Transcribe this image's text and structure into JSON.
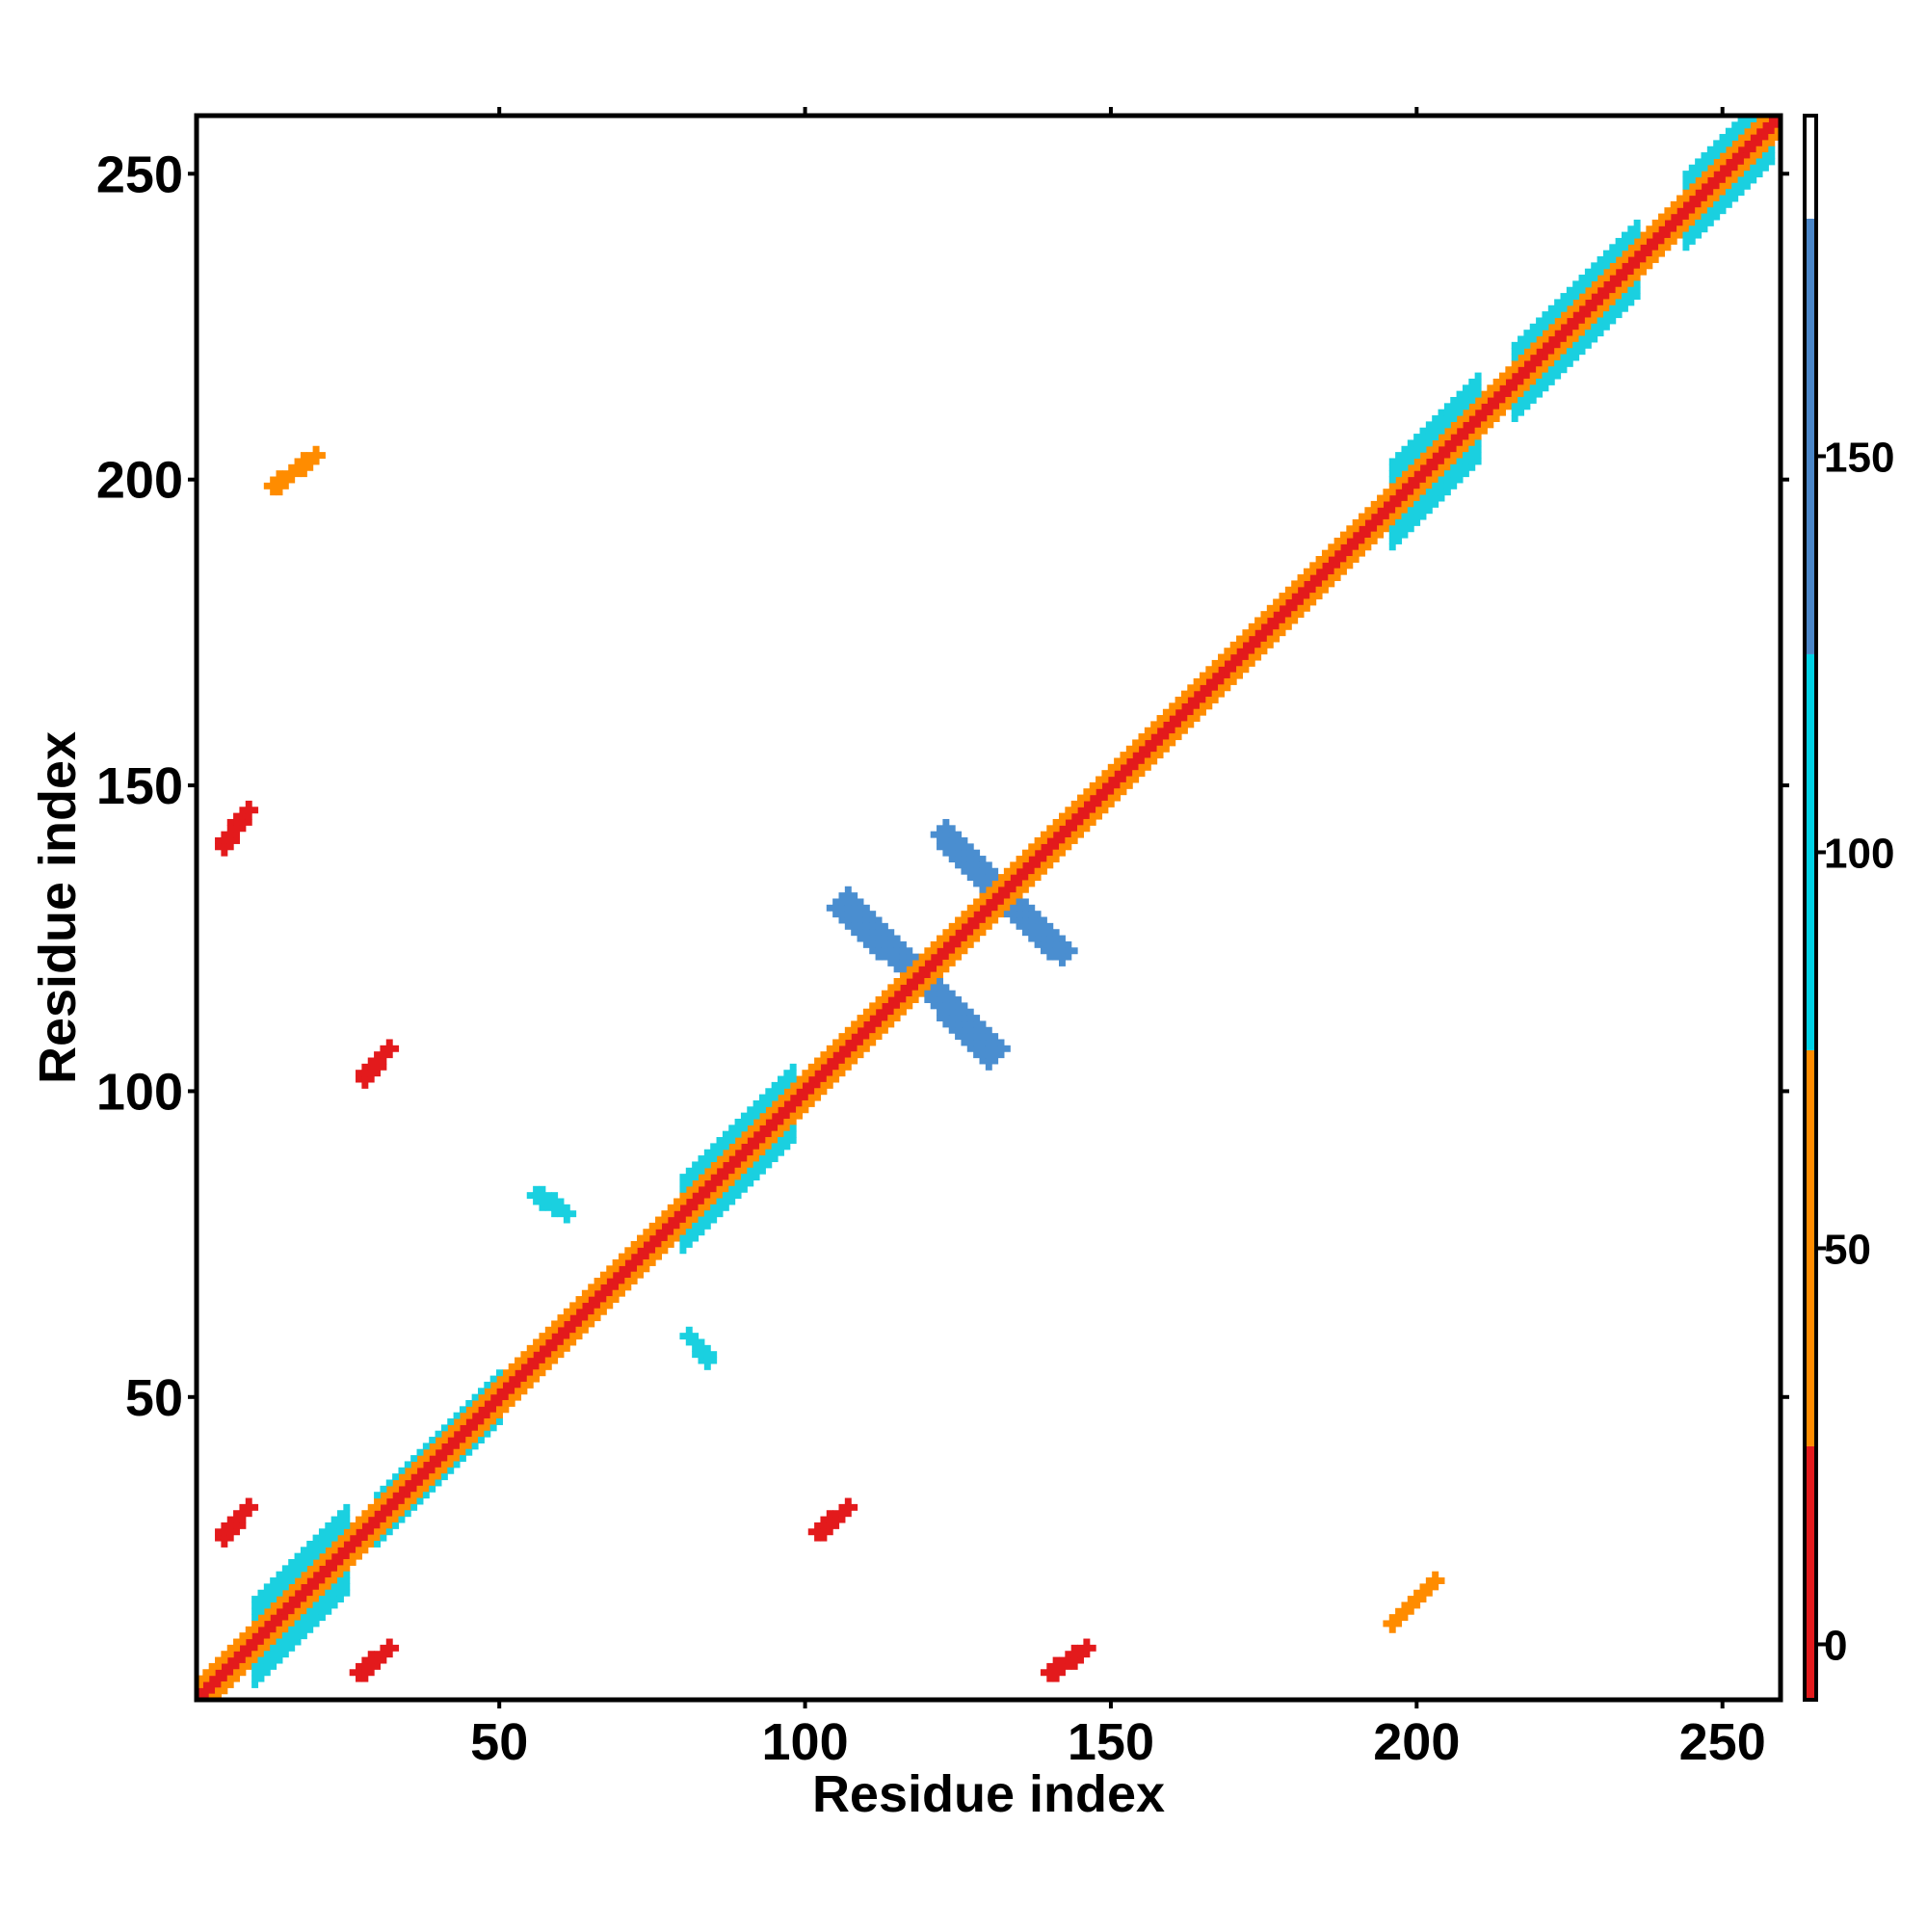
{
  "chart_data": {
    "type": "heatmap",
    "title": "",
    "xlabel": "Residue index",
    "ylabel": "Residue index",
    "xlim": [
      1,
      259
    ],
    "ylim": [
      1,
      259
    ],
    "x_ticks": [
      50,
      100,
      150,
      200,
      250
    ],
    "y_ticks": [
      50,
      100,
      150,
      200,
      250
    ],
    "x_tick_labels": [
      "50",
      "100",
      "150",
      "200",
      "250"
    ],
    "y_tick_labels": [
      "50",
      "100",
      "150",
      "200",
      "250"
    ],
    "grid": false,
    "colorbar": {
      "range": [
        -7,
        193
      ],
      "ticks": [
        0,
        50,
        100,
        150
      ],
      "tick_labels": [
        "0",
        "50",
        "100",
        "150"
      ],
      "segments": [
        {
          "from": -7,
          "to": 25,
          "color": "#e31a1c"
        },
        {
          "from": 25,
          "to": 75,
          "color": "#ff8c00"
        },
        {
          "from": 75,
          "to": 125,
          "color": "#00d2e6"
        },
        {
          "from": 125,
          "to": 180,
          "color": "#4a86c8"
        },
        {
          "from": 180,
          "to": 193,
          "color": "#ffffff"
        }
      ]
    },
    "colors": {
      "red": "#e31a1c",
      "orange": "#ff8c00",
      "cyan": "#1ad0e0",
      "blue": "#4a8ed0"
    },
    "features": {
      "diagonal_bands": [
        {
          "start": 1,
          "end": 259,
          "halfwidth": 1,
          "color": "red"
        },
        {
          "start": 1,
          "end": 259,
          "halfwidth": 3,
          "color": "orange"
        },
        {
          "start": 10,
          "end": 25,
          "halfwidth": 7,
          "color": "cyan"
        },
        {
          "start": 30,
          "end": 50,
          "halfwidth": 4,
          "color": "cyan"
        },
        {
          "start": 80,
          "end": 98,
          "halfwidth": 6,
          "color": "cyan"
        },
        {
          "start": 196,
          "end": 210,
          "halfwidth": 7,
          "color": "cyan"
        },
        {
          "start": 216,
          "end": 236,
          "halfwidth": 6,
          "color": "cyan"
        },
        {
          "start": 244,
          "end": 258,
          "halfwidth": 6,
          "color": "cyan"
        }
      ],
      "anti_diagonal_strands": [
        {
          "x1": 106,
          "y1": 130,
          "x2": 131,
          "y2": 107,
          "halfwidth": 2,
          "color": "blue"
        },
        {
          "x1": 124,
          "y1": 140,
          "x2": 142,
          "y2": 123,
          "halfwidth": 2,
          "color": "blue"
        }
      ],
      "parallel_strands": [
        {
          "x1": 5,
          "y1": 140,
          "x2": 9,
          "y2": 146,
          "color": "red"
        },
        {
          "x1": 140,
          "y1": 5,
          "x2": 146,
          "y2": 9,
          "color": "red"
        },
        {
          "x1": 5,
          "y1": 27,
          "x2": 9,
          "y2": 32,
          "color": "red"
        },
        {
          "x1": 27,
          "y1": 5,
          "x2": 32,
          "y2": 9,
          "color": "red"
        },
        {
          "x1": 28,
          "y1": 102,
          "x2": 32,
          "y2": 107,
          "color": "red"
        },
        {
          "x1": 102,
          "y1": 28,
          "x2": 107,
          "y2": 32,
          "color": "red"
        },
        {
          "x1": 56,
          "y1": 83,
          "x2": 61,
          "y2": 80,
          "color": "cyan"
        },
        {
          "x1": 81,
          "y1": 60,
          "x2": 84,
          "y2": 56,
          "color": "cyan"
        },
        {
          "x1": 13,
          "y1": 199,
          "x2": 20,
          "y2": 204,
          "color": "orange"
        },
        {
          "x1": 196,
          "y1": 13,
          "x2": 203,
          "y2": 20,
          "color": "orange"
        }
      ]
    }
  }
}
